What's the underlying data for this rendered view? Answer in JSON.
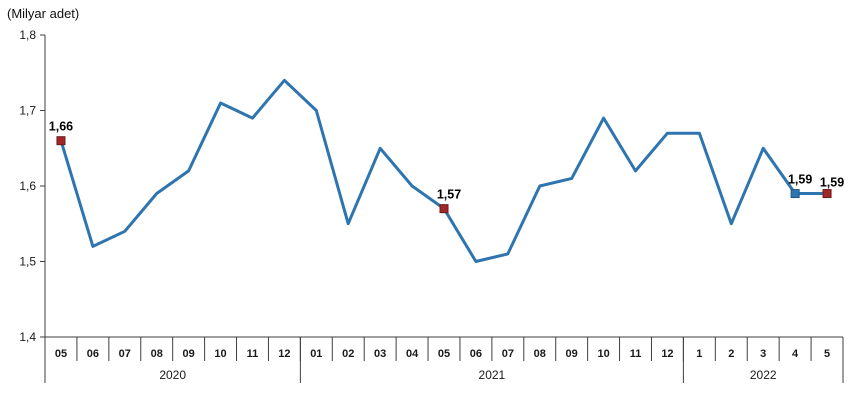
{
  "chart_data": {
    "type": "line",
    "title": "(Milyar adet)",
    "ylim": [
      1.4,
      1.8
    ],
    "ytick_step": 0.1,
    "grid": false,
    "legend": "none",
    "x_groups": [
      {
        "year": "2020",
        "months": [
          "05",
          "06",
          "07",
          "08",
          "09",
          "10",
          "11",
          "12"
        ]
      },
      {
        "year": "2021",
        "months": [
          "01",
          "02",
          "03",
          "04",
          "05",
          "06",
          "07",
          "08",
          "09",
          "10",
          "11",
          "12"
        ]
      },
      {
        "year": "2022",
        "months": [
          "1",
          "2",
          "3",
          "4",
          "5"
        ]
      }
    ],
    "values": [
      1.66,
      1.52,
      1.54,
      1.59,
      1.62,
      1.71,
      1.69,
      1.74,
      1.7,
      1.55,
      1.65,
      1.6,
      1.57,
      1.5,
      1.51,
      1.6,
      1.61,
      1.69,
      1.62,
      1.67,
      1.67,
      1.55,
      1.65,
      1.59,
      1.59
    ],
    "labeled_points": [
      {
        "index": 0,
        "label": "1,66",
        "marker": "red"
      },
      {
        "index": 12,
        "label": "1,57",
        "marker": "red"
      },
      {
        "index": 23,
        "label": "1,59",
        "marker": "blue"
      },
      {
        "index": 24,
        "label": "1,59",
        "marker": "red"
      }
    ]
  },
  "colors": {
    "line": "#2E75B0",
    "marker_red": "#A02628",
    "marker_red_border": "#6E1A1C",
    "marker_blue": "#2E75B0",
    "marker_blue_border": "#1F5684",
    "axis": "#3F3F3F",
    "text": "#1A1A1A"
  }
}
